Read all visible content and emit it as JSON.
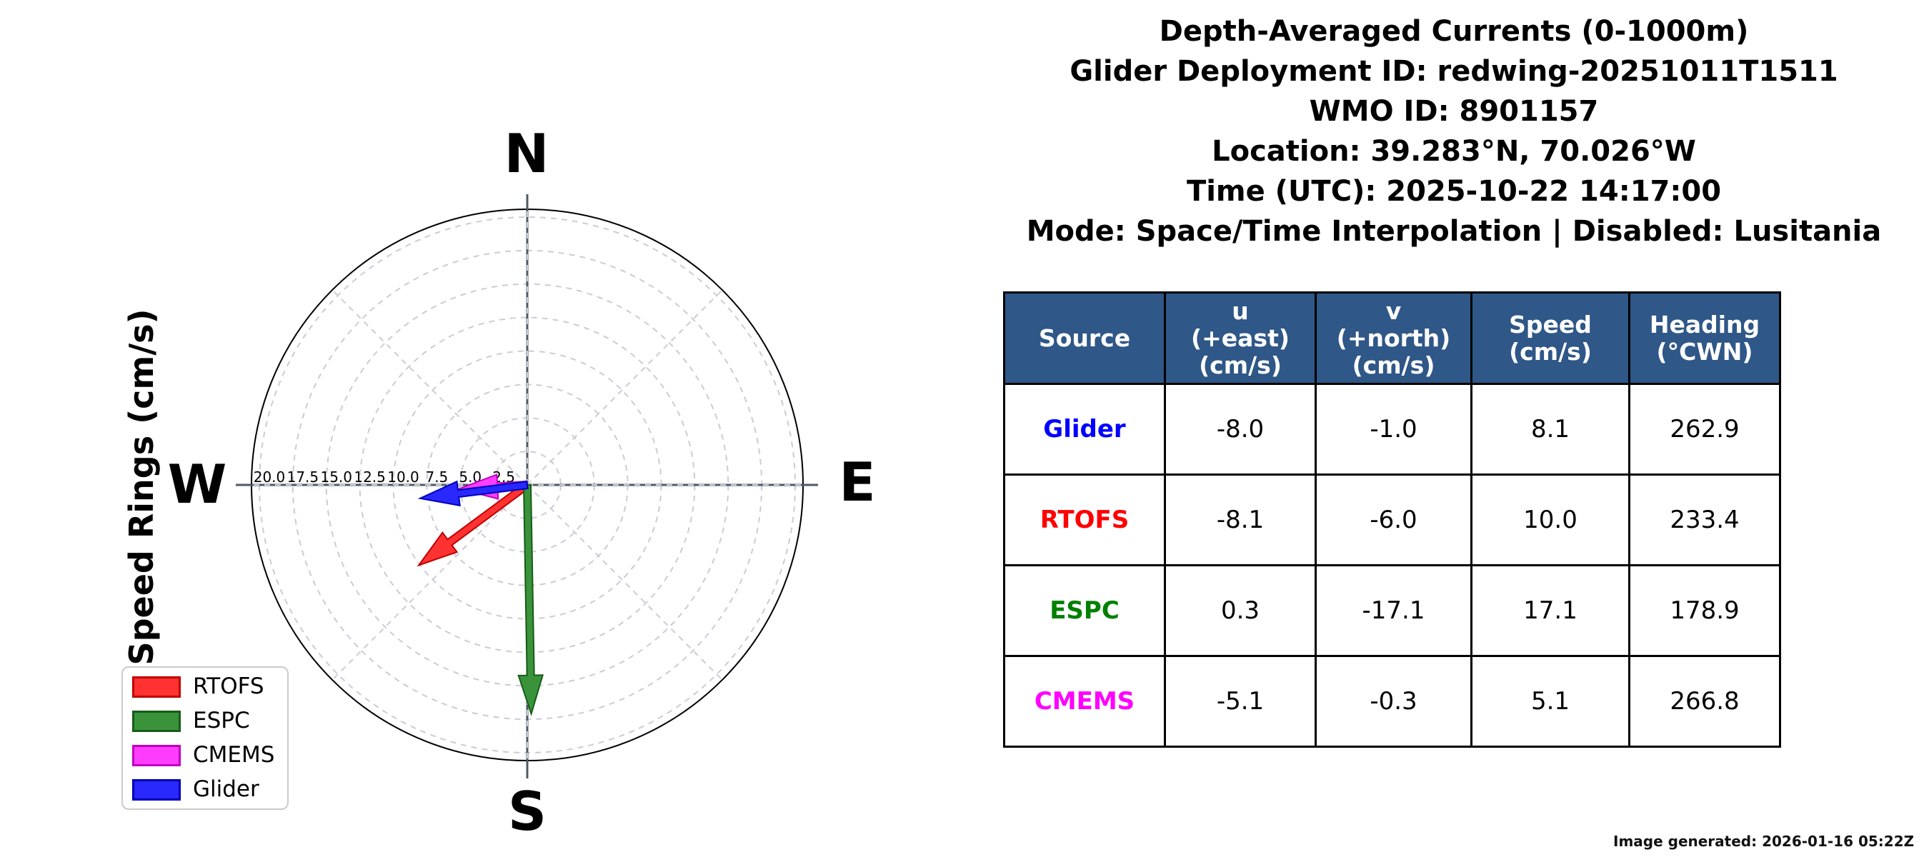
{
  "title_block": {
    "lines": [
      "Depth-Averaged Currents (0-1000m)",
      "Glider Deployment ID: redwing-20251011T1511",
      "WMO ID: 8901157",
      "Location: 39.283°N, 70.026°W",
      "Time (UTC): 2025-10-22 14:17:00",
      "Mode: Space/Time Interpolation | Disabled: Lusitania"
    ]
  },
  "compass": {
    "ylabel": "Speed Rings (cm/s)",
    "cardinal": {
      "n": "N",
      "e": "E",
      "s": "S",
      "w": "W"
    },
    "ring_labels": [
      "20.0",
      "17.5",
      "15.0",
      "12.5",
      "10.0",
      "7.5",
      "5.0",
      "2.5"
    ]
  },
  "legend": {
    "items": [
      {
        "label": "RTOFS",
        "color": "#ff3232",
        "edge": "#c00000"
      },
      {
        "label": "ESPC",
        "color": "#3a933a",
        "edge": "#175c17"
      },
      {
        "label": "CMEMS",
        "color": "#ff3dff",
        "edge": "#bf00bf"
      },
      {
        "label": "Glider",
        "color": "#2828ff",
        "edge": "#0000b8"
      }
    ]
  },
  "table": {
    "headers": [
      {
        "lines": [
          "Source"
        ]
      },
      {
        "lines": [
          "u",
          "(+east)",
          "(cm/s)"
        ]
      },
      {
        "lines": [
          "v",
          "(+north)",
          "(cm/s)"
        ]
      },
      {
        "lines": [
          "Speed",
          "(cm/s)"
        ]
      },
      {
        "lines": [
          "Heading",
          "(°CWN)"
        ]
      }
    ],
    "rows": [
      {
        "source": "Glider",
        "color": "#0000ff",
        "u": "-8.0",
        "v": "-1.0",
        "speed": "8.1",
        "heading": "262.9"
      },
      {
        "source": "RTOFS",
        "color": "#ff0000",
        "u": "-8.1",
        "v": "-6.0",
        "speed": "10.0",
        "heading": "233.4"
      },
      {
        "source": "ESPC",
        "color": "#008000",
        "u": "0.3",
        "v": "-17.1",
        "speed": "17.1",
        "heading": "178.9"
      },
      {
        "source": "CMEMS",
        "color": "#ff00ff",
        "u": "-5.1",
        "v": "-0.3",
        "speed": "5.1",
        "heading": "266.8"
      }
    ]
  },
  "footer": {
    "generated": "Image generated: 2026-01-16 05:22Z"
  },
  "chart_data": {
    "type": "polar_vector",
    "title": "Depth-Averaged Currents (0-1000m)",
    "radial_label": "Speed Rings (cm/s)",
    "units": "cm/s",
    "ring_values_cms": [
      2.5,
      5.0,
      7.5,
      10.0,
      12.5,
      15.0,
      17.5,
      20.0
    ],
    "rmax_cms": 20.6,
    "grid": "dashed rings every 2.5 cm/s with 45-degree spokes",
    "legend_position": "lower left",
    "series": [
      {
        "name": "RTOFS",
        "u": -8.1,
        "v": -6.0,
        "speed": 10.0,
        "heading_cwn": 233.4,
        "color": "#ff3232",
        "edge": "#c00000"
      },
      {
        "name": "ESPC",
        "u": 0.3,
        "v": -17.1,
        "speed": 17.1,
        "heading_cwn": 178.9,
        "color": "#3a933a",
        "edge": "#175c17"
      },
      {
        "name": "CMEMS",
        "u": -5.1,
        "v": -0.3,
        "speed": 5.1,
        "heading_cwn": 266.8,
        "color": "#ff3dff",
        "edge": "#bf00bf"
      },
      {
        "name": "Glider",
        "u": -8.0,
        "v": -1.0,
        "speed": 8.1,
        "heading_cwn": 262.9,
        "color": "#2828ff",
        "edge": "#0000b8"
      }
    ]
  }
}
